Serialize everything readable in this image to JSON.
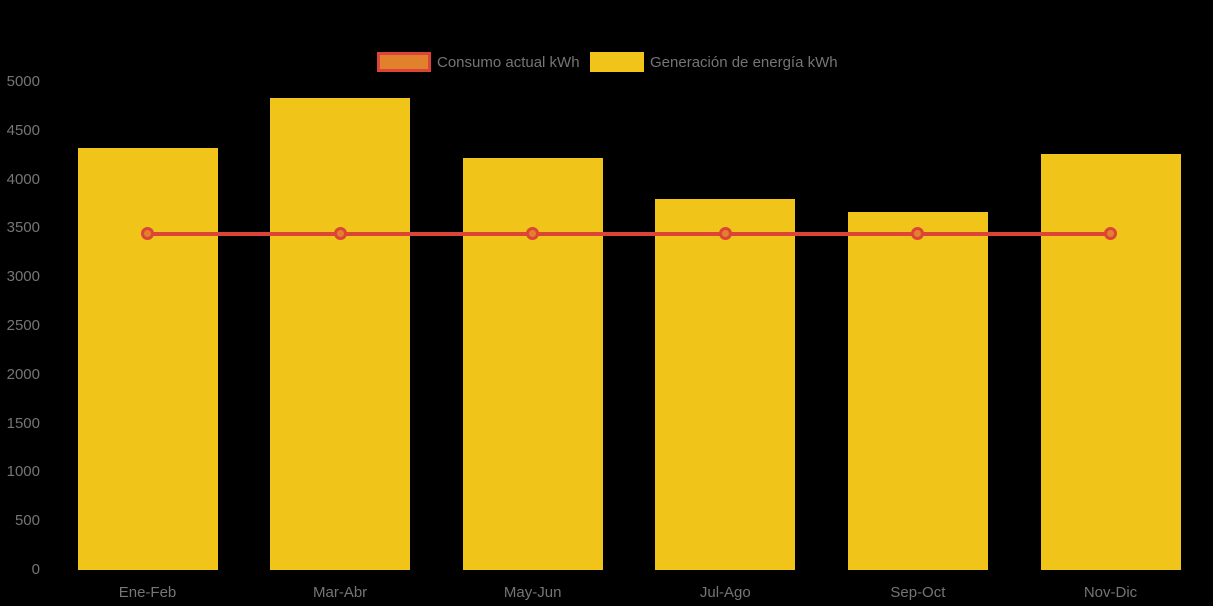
{
  "background_color": "#000000",
  "axis_text_color": "#757575",
  "legend": {
    "items": [
      {
        "name": "consumo",
        "label": "Consumo actual kWh",
        "swatch_fill": "#E2812D",
        "swatch_border": "#DB4437"
      },
      {
        "name": "generacion",
        "label": "Generación de energía kWh",
        "swatch_fill": "#F0C419",
        "swatch_border": "#F0C419"
      }
    ]
  },
  "chart_data": {
    "type": "bar",
    "subtype": "combo-bar-line",
    "title": "",
    "xlabel": "",
    "ylabel": "",
    "categories": [
      "Ene-Feb",
      "Mar-Abr",
      "May-Jun",
      "Jul-Ago",
      "Sep-Oct",
      "Nov-Dic"
    ],
    "series": [
      {
        "name": "Consumo actual kWh",
        "type": "line",
        "line_color": "#DB4437",
        "marker_fill": "#E2812D",
        "marker_border": "#DB4437",
        "values": [
          3445,
          3445,
          3445,
          3445,
          3445,
          3445
        ]
      },
      {
        "name": "Generación de energía kWh",
        "type": "bar",
        "color": "#F0C419",
        "values": [
          4325,
          4840,
          4220,
          3800,
          3670,
          4265
        ]
      }
    ],
    "ylim": [
      0,
      5000
    ],
    "yticks": [
      0,
      500,
      1000,
      1500,
      2000,
      2500,
      3000,
      3500,
      4000,
      4500,
      5000
    ],
    "grid": false,
    "legend_position": "top-center",
    "background": "black"
  }
}
